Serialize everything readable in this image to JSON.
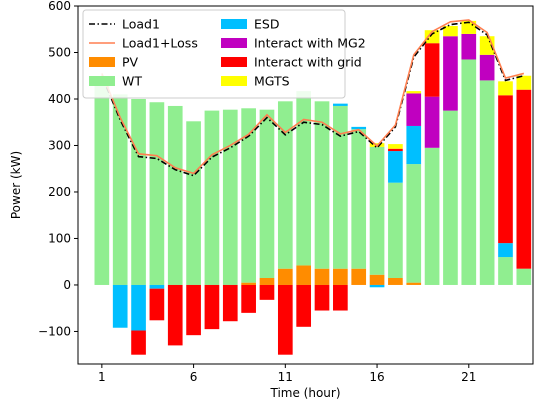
{
  "chart_data": {
    "type": "bar",
    "subtype": "stacked-bar-with-lines",
    "xlabel": "Time (hour)",
    "ylabel": "Power (kW)",
    "ylim": [
      -170,
      600
    ],
    "xlim": [
      -0.3,
      24.5
    ],
    "xticks": [
      1,
      6,
      11,
      16,
      21
    ],
    "yticks": [
      -100,
      0,
      100,
      200,
      300,
      400,
      500,
      600
    ],
    "legend_position": "upper-left",
    "legend_columns": 2,
    "x": [
      1,
      2,
      3,
      4,
      5,
      6,
      7,
      8,
      9,
      10,
      11,
      12,
      13,
      14,
      15,
      16,
      17,
      18,
      19,
      20,
      21,
      22,
      23,
      24
    ],
    "series": [
      {
        "name": "PV",
        "color": "#ff8c00",
        "values": [
          0,
          0,
          0,
          0,
          0,
          0,
          0,
          0,
          5,
          15,
          35,
          42,
          35,
          35,
          35,
          22,
          15,
          5,
          0,
          0,
          0,
          0,
          0,
          0
        ]
      },
      {
        "name": "WT",
        "color": "#90ee90",
        "values": [
          445,
          410,
          400,
          393,
          385,
          352,
          375,
          377,
          375,
          362,
          360,
          375,
          360,
          350,
          300,
          275,
          205,
          255,
          295,
          375,
          485,
          440,
          60,
          35
        ]
      },
      {
        "name": "ESD",
        "color": "#00bfff",
        "values": [
          0,
          -92,
          -98,
          -8,
          0,
          0,
          0,
          0,
          0,
          0,
          0,
          0,
          0,
          5,
          5,
          -5,
          68,
          82,
          0,
          0,
          0,
          0,
          30,
          0
        ]
      },
      {
        "name": "Interact with MG2",
        "color": "#c000c0",
        "values": [
          0,
          0,
          0,
          0,
          0,
          0,
          0,
          0,
          0,
          0,
          0,
          0,
          0,
          0,
          0,
          0,
          0,
          70,
          110,
          160,
          55,
          55,
          0,
          0
        ]
      },
      {
        "name": "Interact with grid",
        "color": "#ff0000",
        "values": [
          0,
          0,
          -52,
          -68,
          -130,
          -108,
          -95,
          -78,
          -60,
          -32,
          -150,
          -90,
          -55,
          -55,
          0,
          0,
          5,
          0,
          115,
          0,
          0,
          0,
          318,
          385
        ]
      },
      {
        "name": "MGTS",
        "color": "#ffff00",
        "values": [
          0,
          0,
          0,
          0,
          0,
          0,
          0,
          0,
          0,
          0,
          0,
          0,
          0,
          0,
          0,
          8,
          10,
          5,
          28,
          22,
          28,
          40,
          30,
          30
        ]
      },
      {
        "name": "Load1",
        "type": "line",
        "style": "dashdot",
        "color": "#000000",
        "values": [
          450,
          355,
          276,
          272,
          248,
          235,
          275,
          295,
          320,
          360,
          323,
          350,
          345,
          320,
          330,
          295,
          340,
          490,
          540,
          560,
          565,
          538,
          440,
          450
        ]
      },
      {
        "name": "Load1+Loss",
        "type": "line",
        "style": "solid",
        "color": "#ff7f50",
        "values": [
          455,
          360,
          282,
          278,
          252,
          240,
          280,
          300,
          324,
          366,
          328,
          356,
          350,
          325,
          334,
          299,
          344,
          495,
          545,
          566,
          570,
          543,
          445,
          455
        ]
      }
    ]
  }
}
